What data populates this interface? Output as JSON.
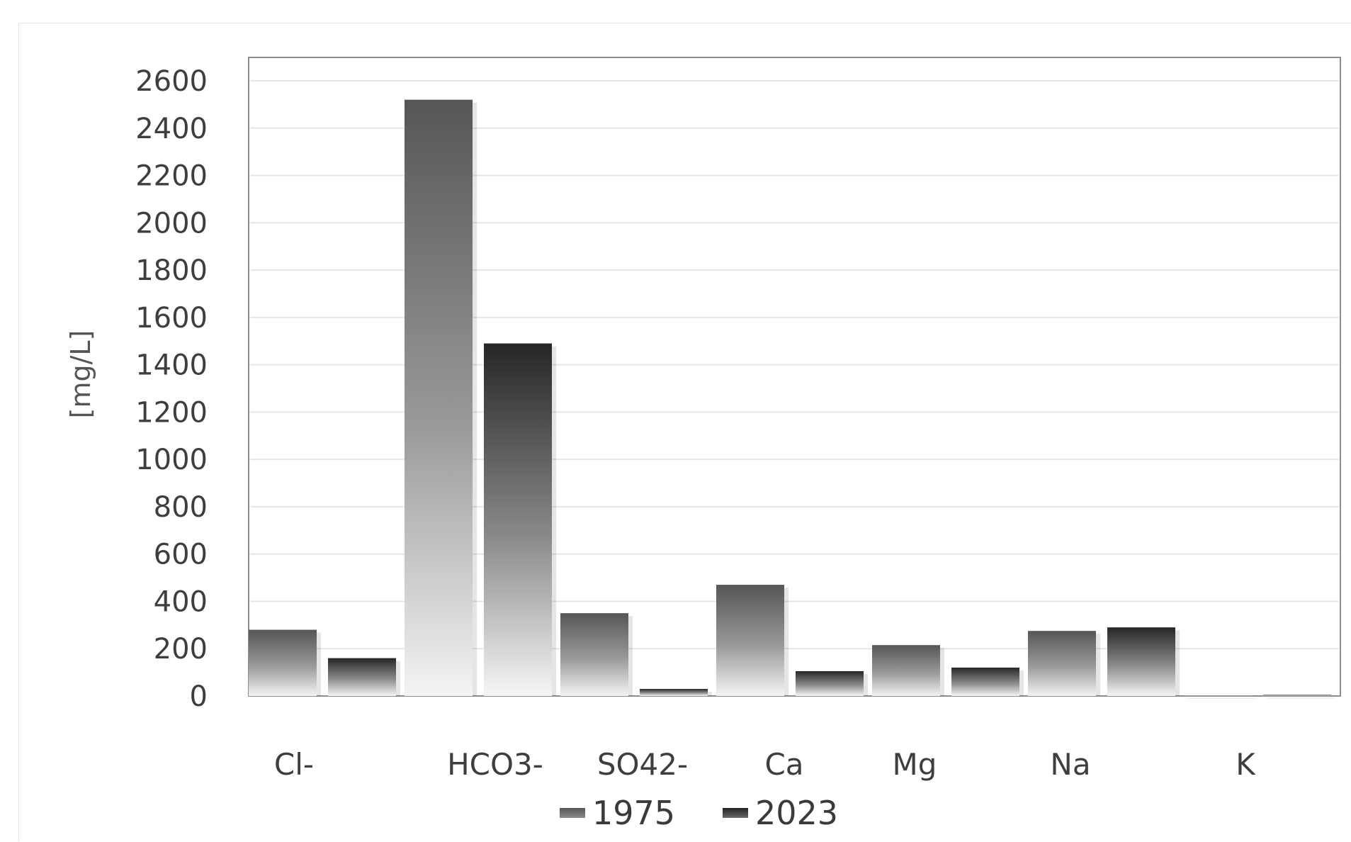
{
  "chart_data": {
    "type": "bar",
    "title": "",
    "xlabel": "",
    "ylabel": "[mg/L]",
    "ylim": [
      0,
      2600
    ],
    "yticks": [
      0,
      200,
      400,
      600,
      800,
      1000,
      1200,
      1400,
      1600,
      1800,
      2000,
      2200,
      2400,
      2600
    ],
    "grid": true,
    "legend_position": "bottom",
    "categories": [
      "Cl-",
      "HCO3-",
      "SO42-",
      "Ca",
      "Mg",
      "Na",
      "K"
    ],
    "series": [
      {
        "name": "1975",
        "values": [
          280,
          2520,
          350,
          470,
          215,
          275,
          3
        ],
        "color": "#5a5a5a"
      },
      {
        "name": "2023",
        "values": [
          160,
          1490,
          30,
          105,
          120,
          290,
          5
        ],
        "color": "#2e2e2e"
      }
    ]
  }
}
